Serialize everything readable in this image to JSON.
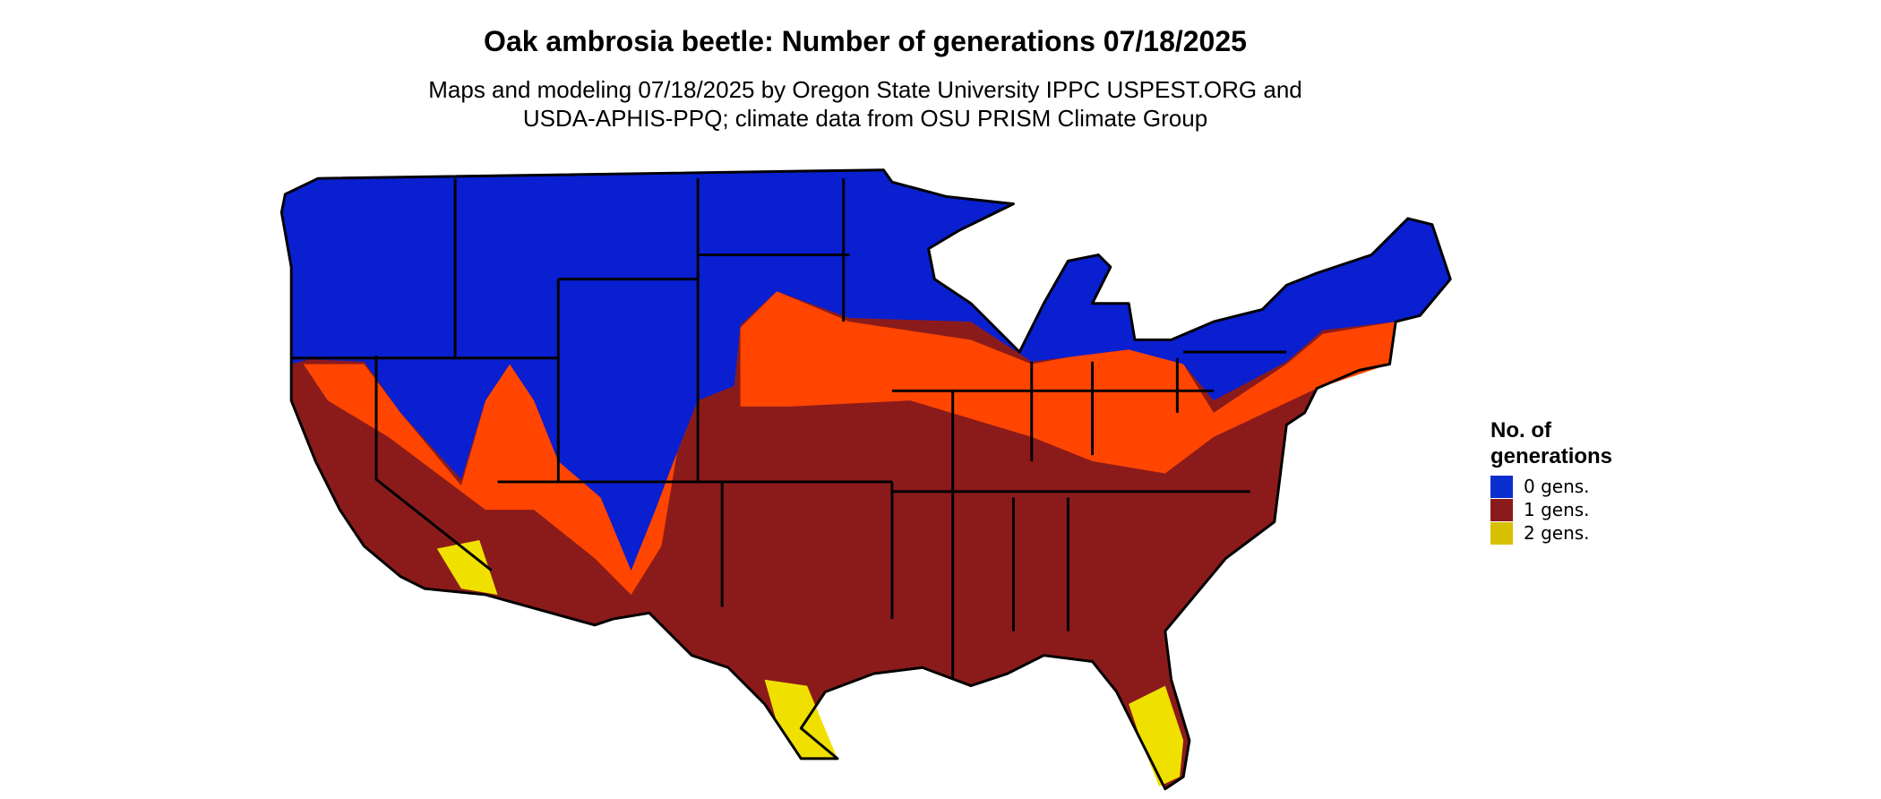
{
  "header": {
    "title": "Oak ambrosia beetle: Number of generations 07/18/2025",
    "subtitle_lines": [
      "Maps and modeling 07/18/2025 by Oregon State University IPPC USPEST.ORG and",
      "USDA-APHIS-PPQ; climate data from OSU PRISM Climate Group"
    ]
  },
  "legend": {
    "title_lines": [
      "No. of",
      "generations"
    ],
    "items": [
      {
        "label": "0 gens.",
        "color": "#0a2fd0"
      },
      {
        "label": "1 gens.",
        "color": "#8b1b1b"
      },
      {
        "label": "2 gens.",
        "color": "#d6c000"
      }
    ]
  }
}
